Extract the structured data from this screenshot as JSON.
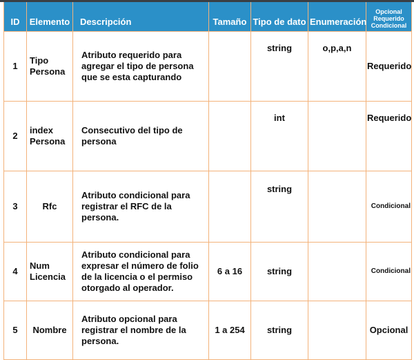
{
  "header": {
    "id": "ID",
    "elemento": "Elemento",
    "descripcion": "Descripción",
    "tamano": "Tamaño",
    "tipo": "Tipo de dato",
    "enumeracion": "Enumeración",
    "opcional": [
      "Opcional",
      "Requerido",
      "Condicional"
    ]
  },
  "rows": [
    {
      "id": "1",
      "elemento": [
        "Tipo",
        "Persona"
      ],
      "descripcion": [
        "Atributo requerido para",
        "agregar el tipo de persona",
        "que se esta capturando"
      ],
      "tamano": "",
      "tipo": "string",
      "enumeracion": "o,p,a,n",
      "opcional": "Requerido"
    },
    {
      "id": "2",
      "elemento": [
        "index",
        "Persona"
      ],
      "descripcion": [
        "Consecutivo del tipo de",
        "persona"
      ],
      "tamano": "",
      "tipo": "int",
      "enumeracion": "",
      "opcional": "Requerido"
    },
    {
      "id": "3",
      "elemento": [
        "Rfc",
        ""
      ],
      "descripcion": [
        "Atributo condicional para",
        "registrar el RFC de la",
        "persona."
      ],
      "tamano": "",
      "tipo": "string",
      "enumeracion": "",
      "opcional": "Condicional"
    },
    {
      "id": "4",
      "elemento": [
        "Num",
        "Licencia"
      ],
      "descripcion": [
        "Atributo condicional para",
        "expresar el número de folio",
        "de la licencia o el permiso",
        "otorgado al operador."
      ],
      "tamano": "6 a 16",
      "tipo": "string",
      "enumeracion": "",
      "opcional": "Condicional"
    },
    {
      "id": "5",
      "elemento": [
        "Nombre",
        ""
      ],
      "descripcion": [
        "Atributo opcional para",
        "registrar el nombre de la",
        "persona."
      ],
      "tamano": "1 a 254",
      "tipo": "string",
      "enumeracion": "",
      "opcional": "Opcional"
    }
  ],
  "colors": {
    "header_bg": "#2b90c8",
    "border": "#f3b27a"
  }
}
